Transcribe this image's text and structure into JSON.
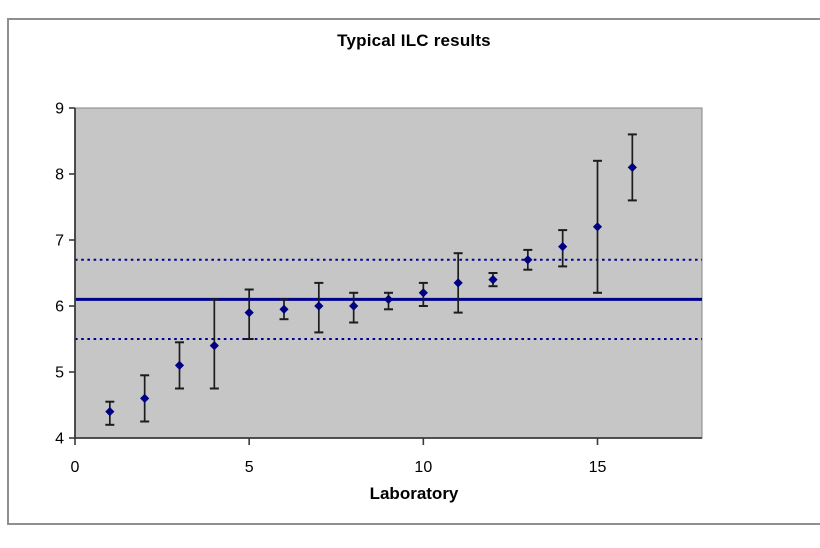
{
  "colors": {
    "plot_background": "#c6c6c6",
    "plot_border": "#858585",
    "axis_line": "#3a3a3a",
    "marker": "#000082",
    "mean_line": "#00008c",
    "limit_line": "#00008c",
    "error_bar": "#1c1c1c",
    "text": "#000000",
    "outer_border": "#8f8f8f"
  },
  "chart_data": {
    "type": "scatter",
    "title": "Typical ILC results",
    "xlabel": "Laboratory",
    "ylabel": "",
    "xlim": [
      0,
      18
    ],
    "ylim": [
      4,
      9
    ],
    "x_ticks": [
      0,
      5,
      10,
      15
    ],
    "y_ticks": [
      4,
      5,
      6,
      7,
      8,
      9
    ],
    "grid": false,
    "legend": "none",
    "marker_shape": "diamond",
    "series": [
      {
        "name": "laboratory-results",
        "x": [
          1,
          2,
          3,
          4,
          5,
          6,
          7,
          8,
          9,
          10,
          11,
          12,
          13,
          14,
          15,
          16
        ],
        "y": [
          4.4,
          4.6,
          5.1,
          5.4,
          5.9,
          5.95,
          6.0,
          6.0,
          6.1,
          6.2,
          6.35,
          6.4,
          6.7,
          6.9,
          7.2,
          8.1
        ],
        "error_low": [
          4.2,
          4.25,
          4.75,
          4.75,
          5.5,
          5.8,
          5.6,
          5.75,
          5.95,
          6.0,
          5.9,
          6.3,
          6.55,
          6.6,
          6.2,
          7.6
        ],
        "error_high": [
          4.55,
          4.95,
          5.45,
          6.1,
          6.25,
          6.1,
          6.35,
          6.2,
          6.2,
          6.35,
          6.8,
          6.5,
          6.85,
          7.15,
          8.2,
          8.6
        ]
      }
    ],
    "reference_lines": [
      {
        "name": "mean-line",
        "value": 6.1,
        "style": "solid"
      },
      {
        "name": "upper-limit-line",
        "value": 6.7,
        "style": "dotted"
      },
      {
        "name": "lower-limit-line",
        "value": 5.5,
        "style": "dotted"
      }
    ]
  }
}
